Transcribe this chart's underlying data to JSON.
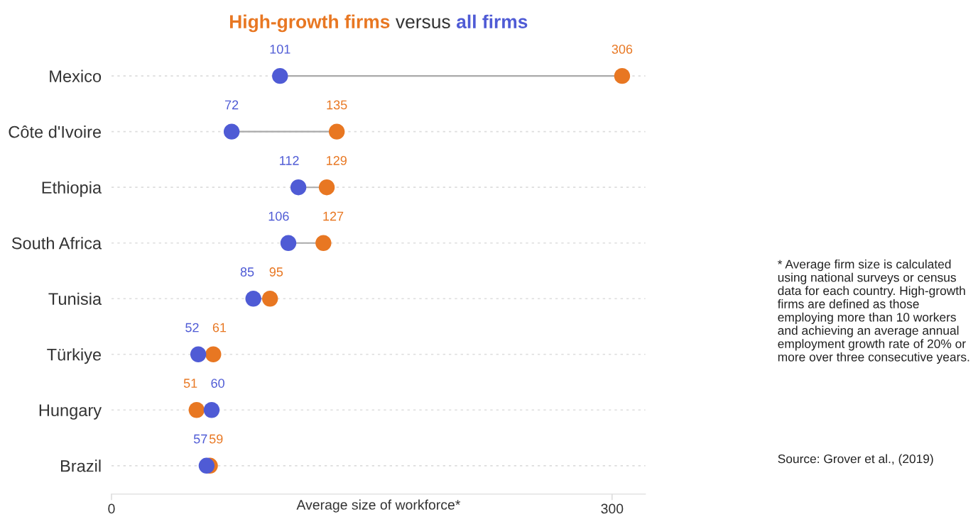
{
  "chart_data": {
    "type": "scatter",
    "orientation": "horizontal",
    "title": "versus",
    "xlabel": "Average size of workforce*",
    "categories": [
      "Mexico",
      "Côte d'Ivoire",
      "Ethiopia",
      "South Africa",
      "Tunisia",
      "Türkiye",
      "Hungary",
      "Brazil"
    ],
    "series": [
      {
        "name": "High-growth firms",
        "color": "#e87722",
        "values": [
          306,
          135,
          129,
          127,
          95,
          61,
          51,
          59
        ]
      },
      {
        "name": "all firms",
        "color": "#4f5bd5",
        "values": [
          101,
          72,
          112,
          106,
          85,
          52,
          60,
          57
        ]
      }
    ],
    "xlim": [
      0,
      320
    ],
    "xticks": [
      0,
      300
    ],
    "grid": "y",
    "marker": "circle",
    "data_labels": true,
    "legend": "top",
    "annotations": [
      "* Average firm size is calculated using national surveys or census data for each country. High-growth firms are defined as those employing more than 10 workers and achieving an average annual employment growth rate of 20% or more over three consecutive years.",
      "Source: Grover et al., (2019)"
    ]
  }
}
